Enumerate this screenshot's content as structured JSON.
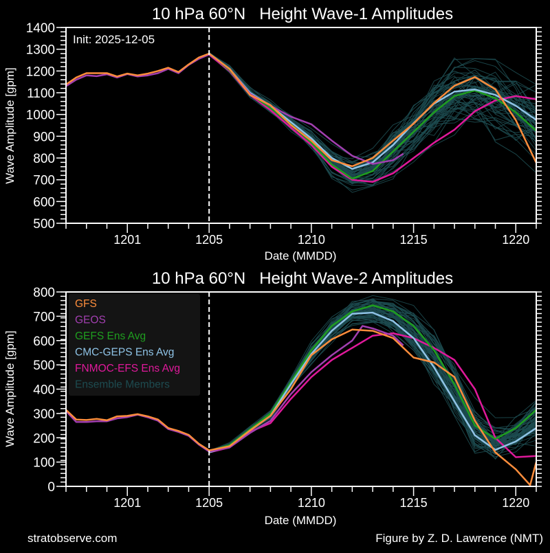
{
  "footer": {
    "left": "stratobserve.com",
    "right": "Figure by Z. D. Lawrence (NMT)"
  },
  "colors": {
    "GFS": "#fd8d3c",
    "GEOS": "#a23fb0",
    "GEFS Ens Avg": "#1f9e1f",
    "CMC-GEPS Ens Avg": "#8fc3e6",
    "FNMOC-EFS Ens Avg": "#e0199b",
    "Ensemble Members": "#1d4b50"
  },
  "chart_data": [
    {
      "type": "line",
      "title": "10 hPa 60°N   Height Wave-1 Amplitudes",
      "annotation": "Init: 2025-12-05",
      "xlabel": "Date (MMDD)",
      "ylabel": "Wave Amplitude [gpm]",
      "x_units": "days relative to 2025-12-01",
      "xlim": [
        -3,
        20
      ],
      "ylim": [
        500,
        1400
      ],
      "yticks": [
        500,
        600,
        700,
        800,
        900,
        1000,
        1100,
        1200,
        1300,
        1400
      ],
      "xticks": [
        {
          "x": 0,
          "label": "1201"
        },
        {
          "x": 4,
          "label": "1205"
        },
        {
          "x": 9,
          "label": "1210"
        },
        {
          "x": 14,
          "label": "1215"
        },
        {
          "x": 19,
          "label": "1220"
        }
      ],
      "init_x": 4,
      "history_x": [
        -3,
        -2.5,
        -2,
        -1.5,
        -1,
        -0.5,
        0,
        0.5,
        1,
        1.5,
        2,
        2.5,
        3,
        3.5,
        4
      ],
      "forecast_x": [
        4,
        5,
        6,
        7,
        8,
        9,
        10,
        11,
        12,
        13,
        14,
        15,
        16,
        17,
        18,
        19,
        20
      ],
      "series": [
        {
          "name": "GFS",
          "history": [
            1138,
            1170,
            1190,
            1190,
            1190,
            1175,
            1188,
            1180,
            1188,
            1200,
            1215,
            1195,
            1230,
            1262,
            1280
          ],
          "x": [
            4,
            5,
            6,
            7,
            8,
            9,
            10,
            11,
            12,
            13,
            14,
            15,
            16,
            17,
            18,
            19,
            20
          ],
          "values": [
            1280,
            1210,
            1090,
            1043,
            952,
            880,
            790,
            762,
            800,
            880,
            958,
            1053,
            1132,
            1172,
            1116,
            974,
            778
          ]
        },
        {
          "name": "GEOS",
          "history": [
            1130,
            1160,
            1180,
            1176,
            1185,
            1170,
            1186,
            1175,
            1180,
            1190,
            1210,
            1190,
            1228,
            1256,
            1276
          ],
          "x": [
            4,
            5,
            6,
            7,
            8,
            9,
            10,
            11,
            12,
            13,
            13.5
          ],
          "values": [
            1276,
            1210,
            1095,
            1040,
            990,
            955,
            880,
            810,
            773,
            790,
            820
          ]
        },
        {
          "name": "GEFS Ens Avg",
          "x": [
            4,
            5,
            6,
            7,
            8,
            9,
            10,
            11,
            12,
            13,
            14,
            15,
            16,
            17,
            18,
            19,
            20
          ],
          "values": [
            1280,
            1205,
            1095,
            1030,
            955,
            870,
            770,
            705,
            740,
            830,
            920,
            1010,
            1085,
            1110,
            1075,
            1010,
            925
          ]
        },
        {
          "name": "CMC-GEPS Ens Avg",
          "x": [
            4,
            5,
            6,
            7,
            8,
            9,
            10,
            11,
            12,
            13,
            14,
            15,
            16,
            17,
            18,
            19,
            20
          ],
          "values": [
            1280,
            1210,
            1100,
            1040,
            965,
            890,
            800,
            750,
            780,
            860,
            960,
            1050,
            1105,
            1115,
            1090,
            1040,
            975
          ]
        },
        {
          "name": "FNMOC-EFS Ens Avg",
          "x": [
            4,
            5,
            6,
            7,
            8,
            9,
            10,
            11,
            12,
            13,
            14,
            15,
            16,
            17,
            18,
            19,
            20
          ],
          "values": [
            1275,
            1200,
            1090,
            1020,
            940,
            860,
            760,
            700,
            690,
            730,
            800,
            870,
            930,
            1015,
            1065,
            1085,
            1070
          ]
        }
      ],
      "ensemble": {
        "count": 60,
        "spread": [
          5,
          20,
          30,
          40,
          50,
          60,
          70,
          75,
          90,
          110,
          130,
          150,
          170,
          185,
          200,
          210,
          220
        ]
      }
    },
    {
      "type": "line",
      "title": "10 hPa 60°N   Height Wave-2 Amplitudes",
      "xlabel": "Date (MMDD)",
      "ylabel": "Wave Amplitude [gpm]",
      "x_units": "days relative to 2025-12-01",
      "xlim": [
        -3,
        20
      ],
      "ylim": [
        0,
        800
      ],
      "yticks": [
        0,
        100,
        200,
        300,
        400,
        500,
        600,
        700,
        800
      ],
      "xticks": [
        {
          "x": 0,
          "label": "1201"
        },
        {
          "x": 4,
          "label": "1205"
        },
        {
          "x": 9,
          "label": "1210"
        },
        {
          "x": 14,
          "label": "1215"
        },
        {
          "x": 19,
          "label": "1220"
        }
      ],
      "init_x": 4,
      "legend": {
        "location": "upper-left",
        "entries": [
          "GFS",
          "GEOS",
          "GEFS Ens Avg",
          "CMC-GEPS Ens Avg",
          "FNMOC-EFS Ens Avg",
          "Ensemble Members"
        ]
      },
      "history_x": [
        -3,
        -2.5,
        -2,
        -1.5,
        -1,
        -0.5,
        0,
        0.5,
        1,
        1.5,
        2,
        2.5,
        3,
        3.5,
        4
      ],
      "series": [
        {
          "name": "GFS",
          "history": [
            315,
            275,
            273,
            278,
            272,
            288,
            290,
            297,
            288,
            275,
            240,
            228,
            212,
            175,
            148
          ],
          "x": [
            4,
            5,
            6,
            7,
            8,
            9,
            10,
            11,
            12,
            13,
            14,
            15,
            16,
            17,
            18,
            19,
            19.7,
            20
          ],
          "values": [
            148,
            165,
            230,
            290,
            400,
            540,
            605,
            645,
            640,
            610,
            530,
            510,
            450,
            270,
            140,
            70,
            5,
            100
          ]
        },
        {
          "name": "GEOS",
          "history": [
            310,
            265,
            265,
            268,
            268,
            280,
            285,
            295,
            284,
            270,
            236,
            224,
            208,
            172,
            143
          ],
          "x": [
            4,
            5,
            6,
            7,
            8,
            9,
            10,
            11,
            11.5,
            12,
            13,
            13.5
          ],
          "values": [
            143,
            160,
            220,
            270,
            380,
            470,
            540,
            600,
            660,
            650,
            620,
            580
          ]
        },
        {
          "name": "GEFS Ens Avg",
          "x": [
            4,
            5,
            6,
            7,
            8,
            9,
            10,
            11,
            12,
            13,
            14,
            15,
            16,
            17,
            18,
            19,
            20
          ],
          "values": [
            145,
            170,
            235,
            300,
            430,
            560,
            660,
            720,
            745,
            720,
            660,
            560,
            420,
            250,
            195,
            240,
            315
          ]
        },
        {
          "name": "CMC-GEPS Ens Avg",
          "x": [
            4,
            5,
            6,
            7,
            8,
            9,
            10,
            11,
            12,
            13,
            14,
            15,
            16,
            17,
            18,
            19,
            20
          ],
          "values": [
            140,
            165,
            230,
            290,
            420,
            545,
            640,
            710,
            715,
            680,
            610,
            490,
            350,
            210,
            150,
            185,
            240
          ]
        },
        {
          "name": "FNMOC-EFS Ens Avg",
          "x": [
            4,
            5,
            6,
            7,
            8,
            9,
            10,
            11,
            12,
            13,
            14,
            15,
            16,
            17,
            18,
            19,
            20
          ],
          "values": [
            140,
            160,
            225,
            260,
            360,
            450,
            520,
            570,
            620,
            630,
            610,
            570,
            520,
            400,
            200,
            120,
            125
          ]
        }
      ],
      "ensemble": {
        "count": 60,
        "spread": [
          5,
          12,
          20,
          30,
          40,
          50,
          55,
          55,
          60,
          70,
          90,
          110,
          120,
          120,
          110,
          100,
          110
        ]
      }
    }
  ]
}
